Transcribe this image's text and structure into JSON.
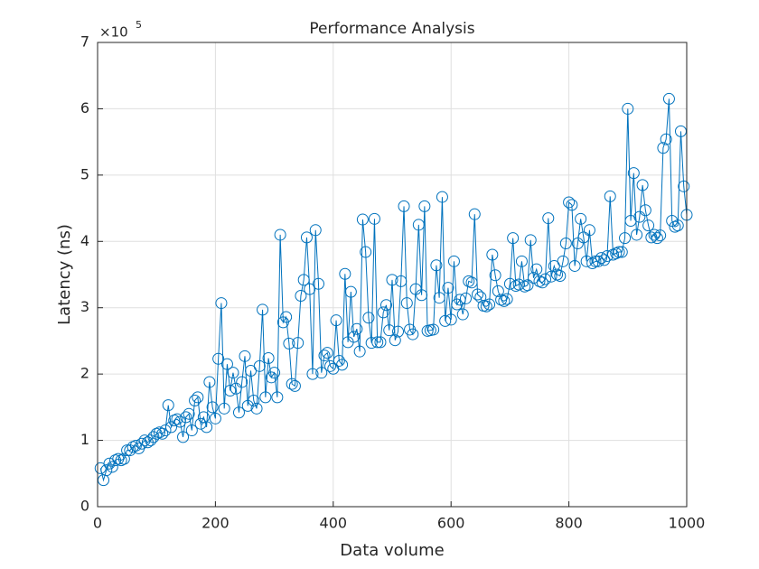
{
  "chart_data": {
    "type": "line",
    "title": "Performance Analysis",
    "x_label": "Data volume",
    "y_label": "Latency (ns)",
    "y_multiplier_base": "×10",
    "y_multiplier_exp": "5",
    "x": [
      5,
      10,
      15,
      20,
      25,
      30,
      35,
      40,
      45,
      50,
      55,
      60,
      65,
      70,
      75,
      80,
      85,
      90,
      95,
      100,
      105,
      110,
      115,
      120,
      125,
      130,
      135,
      140,
      145,
      150,
      155,
      160,
      165,
      170,
      175,
      180,
      185,
      190,
      195,
      200,
      205,
      210,
      215,
      220,
      225,
      230,
      235,
      240,
      245,
      250,
      255,
      260,
      265,
      270,
      275,
      280,
      285,
      290,
      295,
      300,
      305,
      310,
      315,
      320,
      325,
      330,
      335,
      340,
      345,
      350,
      355,
      360,
      365,
      370,
      375,
      380,
      385,
      390,
      395,
      400,
      405,
      410,
      415,
      420,
      425,
      430,
      435,
      440,
      445,
      450,
      455,
      460,
      465,
      470,
      475,
      480,
      485,
      490,
      495,
      500,
      505,
      510,
      515,
      520,
      525,
      530,
      535,
      540,
      545,
      550,
      555,
      560,
      565,
      570,
      575,
      580,
      585,
      590,
      595,
      600,
      605,
      610,
      615,
      620,
      625,
      630,
      635,
      640,
      645,
      650,
      655,
      660,
      665,
      670,
      675,
      680,
      685,
      690,
      695,
      700,
      705,
      710,
      715,
      720,
      725,
      730,
      735,
      740,
      745,
      750,
      755,
      760,
      765,
      770,
      775,
      780,
      785,
      790,
      795,
      800,
      805,
      810,
      815,
      820,
      825,
      830,
      835,
      840,
      845,
      850,
      855,
      860,
      865,
      870,
      875,
      880,
      885,
      890,
      895,
      900,
      905,
      910,
      915,
      920,
      925,
      930,
      935,
      940,
      945,
      950,
      955,
      960,
      965,
      970,
      975,
      980,
      985,
      990,
      995,
      1000
    ],
    "series": [
      {
        "name": "Latency",
        "color": "#0072BD",
        "marker": "circle",
        "values": [
          0.58,
          0.4,
          0.55,
          0.65,
          0.6,
          0.7,
          0.72,
          0.7,
          0.72,
          0.85,
          0.85,
          0.9,
          0.92,
          0.88,
          0.95,
          1.0,
          0.97,
          1.0,
          1.05,
          1.1,
          1.12,
          1.1,
          1.15,
          1.53,
          1.2,
          1.3,
          1.32,
          1.28,
          1.05,
          1.35,
          1.4,
          1.15,
          1.6,
          1.65,
          1.25,
          1.35,
          1.2,
          1.88,
          1.5,
          1.33,
          2.23,
          3.07,
          1.48,
          2.15,
          1.75,
          2.02,
          1.78,
          1.42,
          1.88,
          2.27,
          1.52,
          2.05,
          1.6,
          1.48,
          2.12,
          2.97,
          1.65,
          2.24,
          1.95,
          2.02,
          1.65,
          4.1,
          2.78,
          2.86,
          2.46,
          1.85,
          1.82,
          2.47,
          3.18,
          3.42,
          4.06,
          3.28,
          2.0,
          4.17,
          3.36,
          2.02,
          2.28,
          2.32,
          2.12,
          2.08,
          2.81,
          2.2,
          2.14,
          3.51,
          2.48,
          3.24,
          2.56,
          2.68,
          2.34,
          4.33,
          3.84,
          2.85,
          2.47,
          4.34,
          2.48,
          2.48,
          2.93,
          3.04,
          2.66,
          3.42,
          2.51,
          2.64,
          3.4,
          4.53,
          3.07,
          2.67,
          2.6,
          3.28,
          4.25,
          3.19,
          4.53,
          2.65,
          2.66,
          2.67,
          3.64,
          3.15,
          4.67,
          2.8,
          3.3,
          2.82,
          3.7,
          3.05,
          3.12,
          2.9,
          3.14,
          3.4,
          3.38,
          4.41,
          3.2,
          3.16,
          3.03,
          3.02,
          3.05,
          3.8,
          3.49,
          3.25,
          3.12,
          3.1,
          3.13,
          3.36,
          4.05,
          3.33,
          3.35,
          3.7,
          3.32,
          3.34,
          4.02,
          3.45,
          3.58,
          3.4,
          3.38,
          3.43,
          4.35,
          3.47,
          3.63,
          3.5,
          3.48,
          3.7,
          3.97,
          4.59,
          4.55,
          3.63,
          3.97,
          4.34,
          4.06,
          3.7,
          4.17,
          3.67,
          3.7,
          3.7,
          3.75,
          3.72,
          3.78,
          4.68,
          3.8,
          3.82,
          3.84,
          3.84,
          4.05,
          6.0,
          4.31,
          5.03,
          4.1,
          4.37,
          4.85,
          4.47,
          4.24,
          4.06,
          4.1,
          4.05,
          4.09,
          5.41,
          5.54,
          6.15,
          4.31,
          4.22,
          4.24,
          5.66,
          4.83,
          4.4
        ]
      }
    ],
    "xlim": [
      0,
      1000
    ],
    "xticks": [
      0,
      200,
      400,
      600,
      800,
      1000
    ],
    "ylim": [
      0,
      7
    ],
    "yticks": [
      0,
      1,
      2,
      3,
      4,
      5,
      6,
      7
    ],
    "grid": true
  }
}
